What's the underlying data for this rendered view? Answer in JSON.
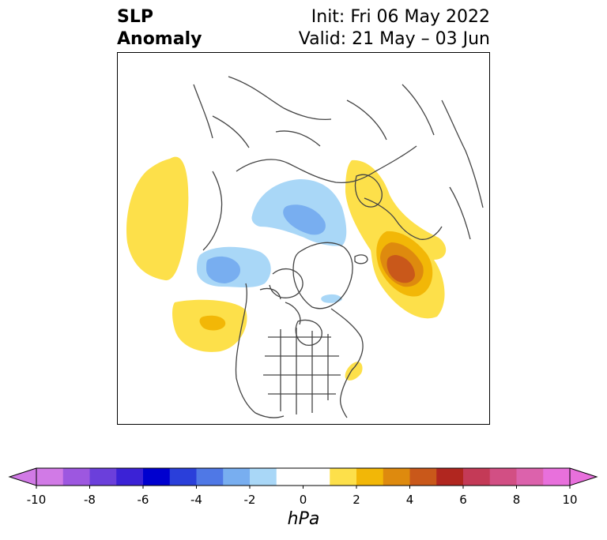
{
  "title": {
    "left_line1": "SLP",
    "left_line2": "Anomaly",
    "right_line1": "Init: Fri 06 May 2022",
    "right_line2": "Valid: 21 May – 03 Jun"
  },
  "colorbar": {
    "units": "hPa",
    "ticks": [
      "-10",
      "-8",
      "-6",
      "-4",
      "-2",
      "0",
      "2",
      "4",
      "6",
      "8",
      "10"
    ],
    "tick_values": [
      -10,
      -8,
      -6,
      -4,
      -2,
      0,
      2,
      4,
      6,
      8,
      10
    ],
    "extend": "both",
    "colors": [
      "#d17ae6",
      "#9d57e0",
      "#6b3fdb",
      "#3b22d6",
      "#0000cf",
      "#2a3fda",
      "#4f78e6",
      "#78aef0",
      "#a9d7f7",
      "#ffffff",
      "#ffffff",
      "#fde04a",
      "#f2b707",
      "#de8a0e",
      "#c9581a",
      "#b1261f",
      "#c43a57",
      "#d24f84",
      "#dc62ac",
      "#e870dc"
    ]
  }
}
